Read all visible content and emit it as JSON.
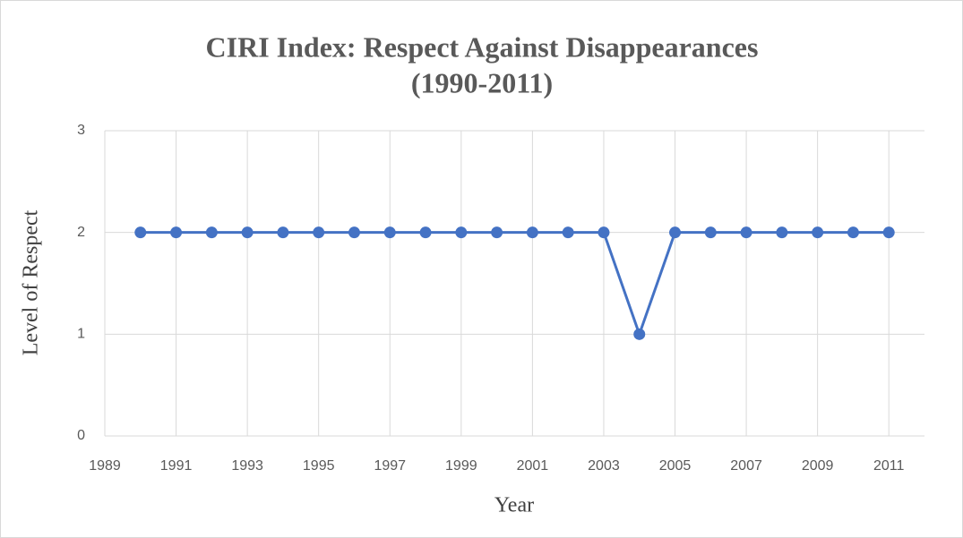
{
  "chart_data": {
    "type": "line",
    "title": [
      "CIRI Index: Respect Against Disappearances",
      "(1990-2011)"
    ],
    "x_label": "Year",
    "y_label": "Level of Respect",
    "x": [
      1990,
      1991,
      1992,
      1993,
      1994,
      1995,
      1996,
      1997,
      1998,
      1999,
      2000,
      2001,
      2002,
      2003,
      2004,
      2005,
      2006,
      2007,
      2008,
      2009,
      2010,
      2011
    ],
    "series": [
      {
        "name": "Level of Respect",
        "color": "#4472c4",
        "values": [
          2,
          2,
          2,
          2,
          2,
          2,
          2,
          2,
          2,
          2,
          2,
          2,
          2,
          2,
          1,
          2,
          2,
          2,
          2,
          2,
          2,
          2
        ]
      }
    ],
    "xlim": [
      1989,
      2012
    ],
    "xticks": [
      1989,
      1991,
      1993,
      1995,
      1997,
      1999,
      2001,
      2003,
      2005,
      2007,
      2009,
      2011
    ],
    "ylim": [
      0,
      3
    ],
    "yticks": [
      0,
      1,
      2,
      3
    ],
    "grid": true
  }
}
